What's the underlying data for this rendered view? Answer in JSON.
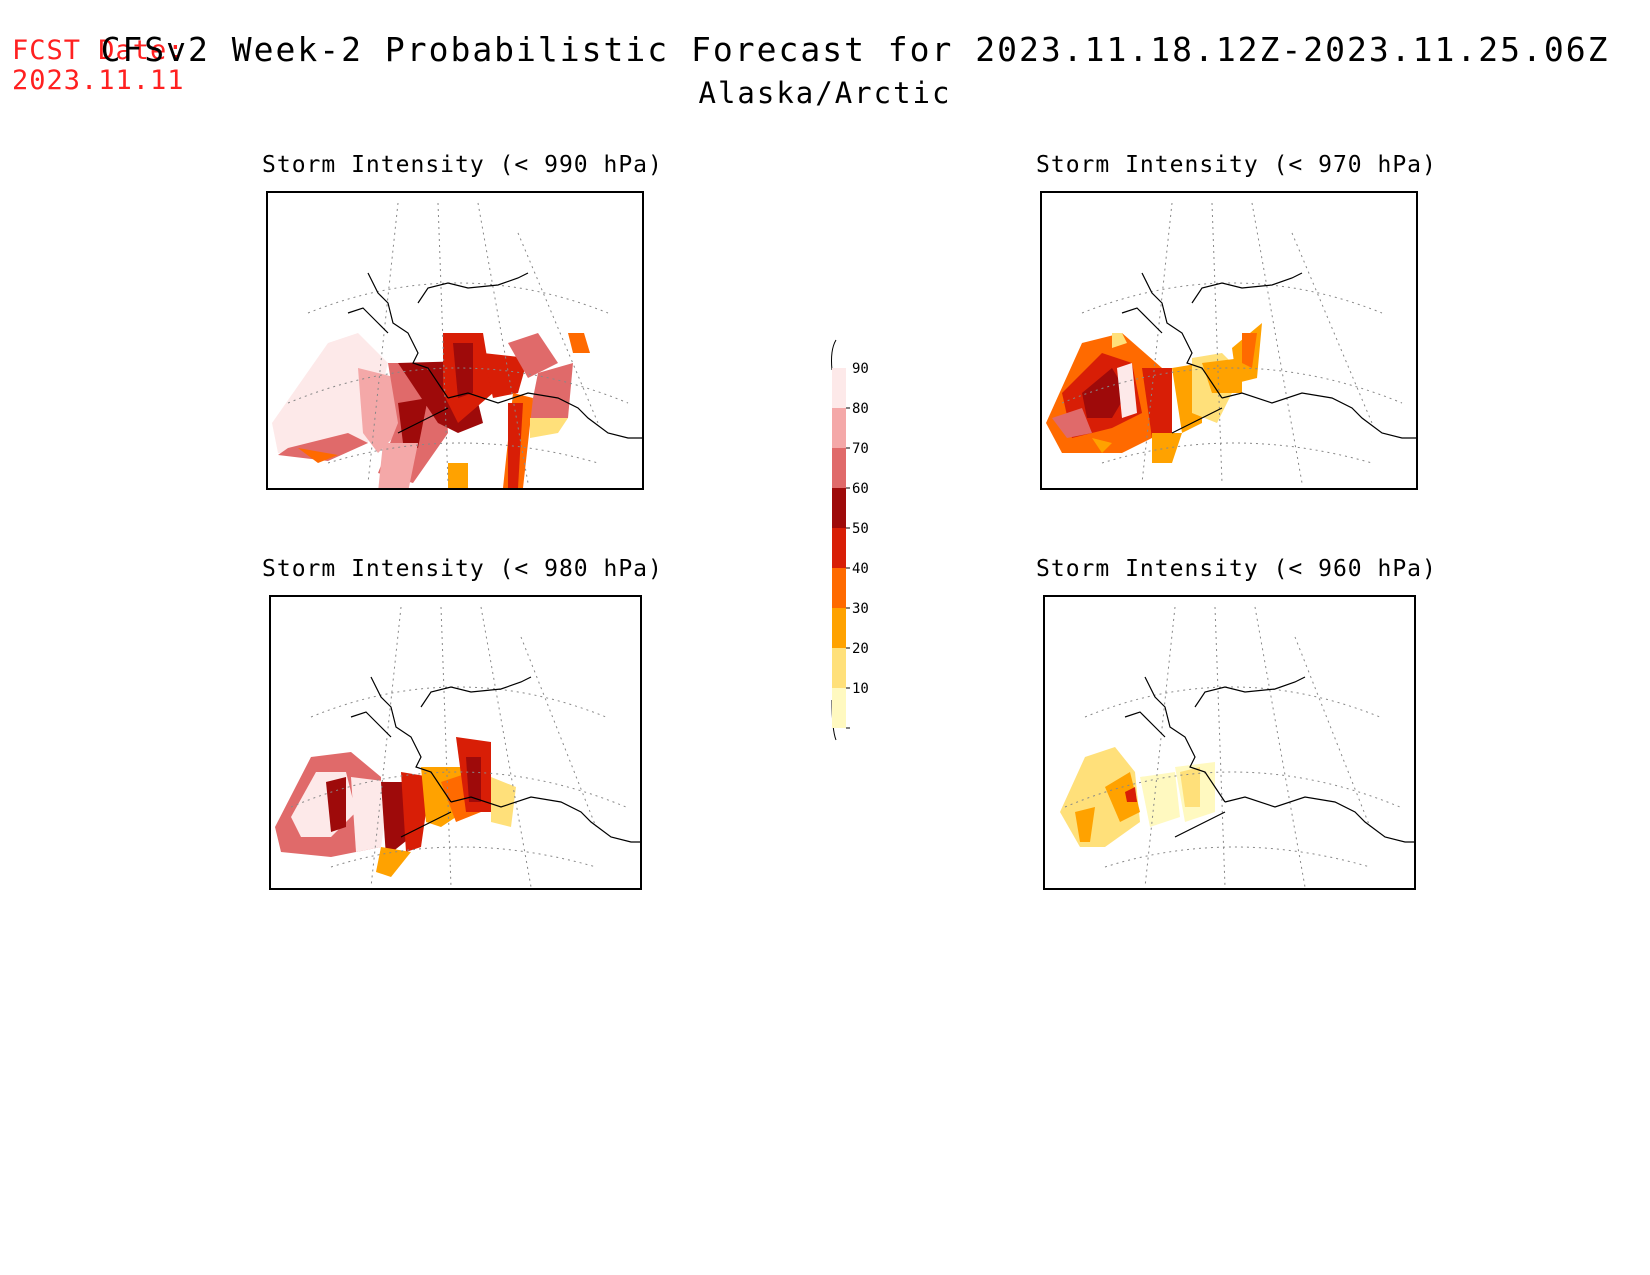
{
  "header": {
    "fcst_label": "FCST Date:",
    "fcst_date": "2023.11.11",
    "title": "CFSv2 Week-2 Probabilistic Forecast for 2023.11.18.12Z-2023.11.25.06Z",
    "subtitle": "Alaska/Arctic"
  },
  "panels": [
    {
      "id": "p990",
      "title": "Storm Intensity (< 990 hPa)"
    },
    {
      "id": "p970",
      "title": "Storm Intensity (< 970 hPa)"
    },
    {
      "id": "p980",
      "title": "Storm Intensity (< 980 hPa)"
    },
    {
      "id": "p960",
      "title": "Storm Intensity (< 960 hPa)"
    }
  ],
  "colorbar": {
    "labels": [
      "90",
      "80",
      "70",
      "60",
      "50",
      "40",
      "30",
      "20",
      "10"
    ],
    "colors": [
      "#fde9e9",
      "#f4a8a8",
      "#e06a6a",
      "#9e0a0a",
      "#d81e06",
      "#ff6a00",
      "#ffa200",
      "#ffe07a",
      "#fff9c0"
    ]
  }
}
